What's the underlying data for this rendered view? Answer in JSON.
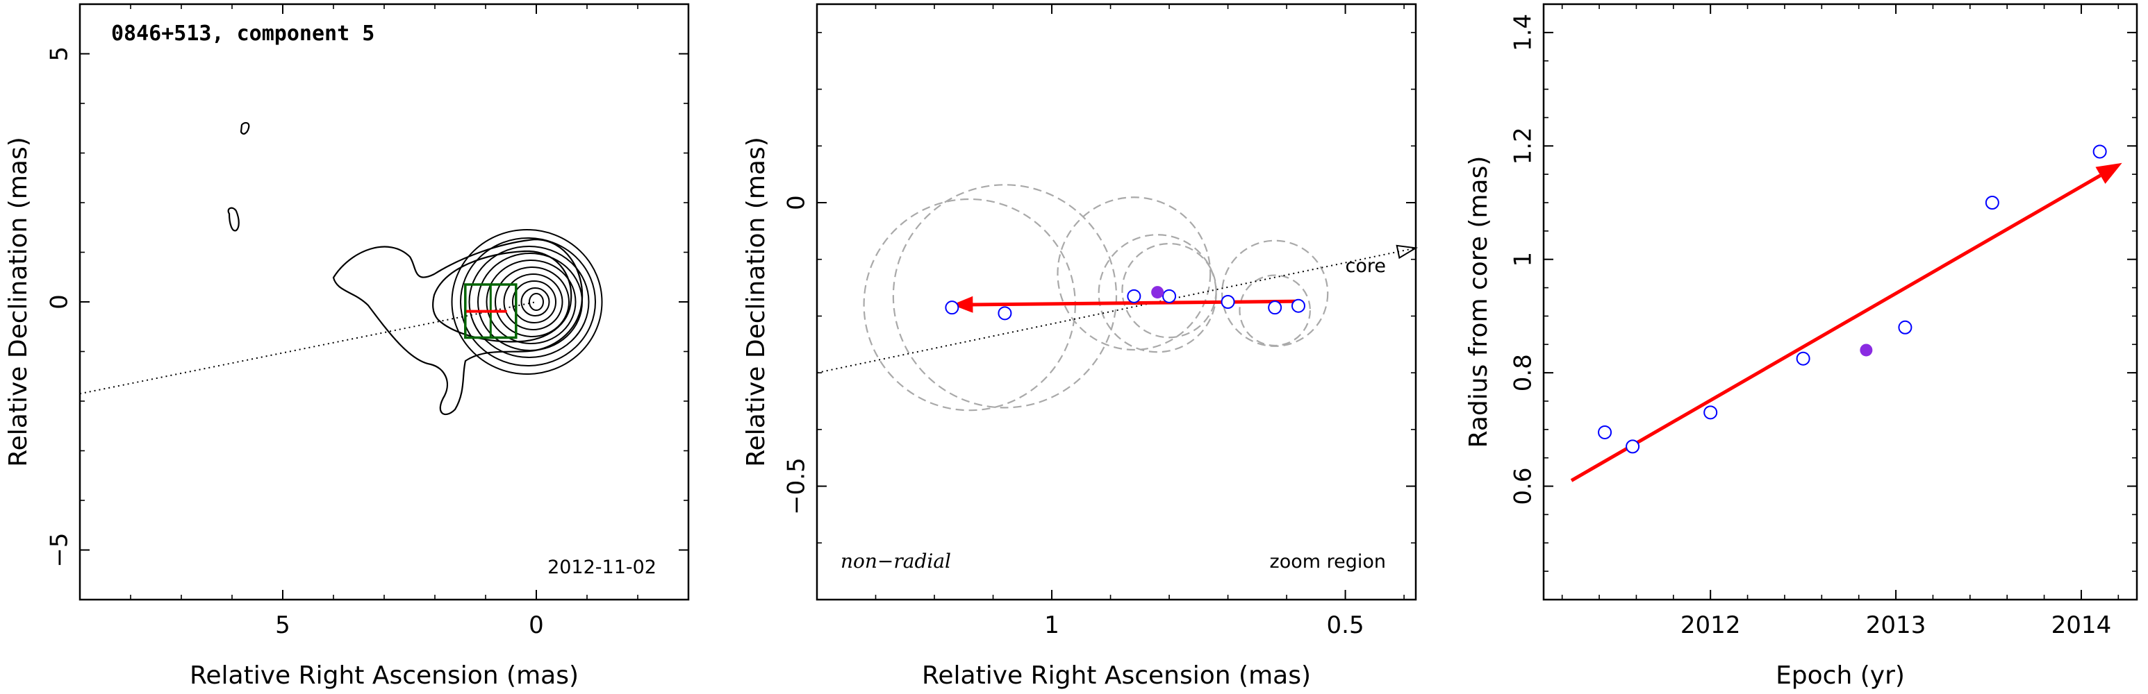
{
  "chart_data": [
    {
      "type": "scatter",
      "panel": "vlbi-map",
      "title": "0846+513, component 5",
      "date_label": "2012-11-02",
      "xlabel": "Relative Right Ascension (mas)",
      "ylabel": "Relative Declination (mas)",
      "xlim": [
        9,
        -3
      ],
      "ylim": [
        -6,
        6
      ],
      "x_ticks": [
        5,
        0
      ],
      "y_ticks": [
        5,
        0,
        -5
      ],
      "x_tick_labels": [
        "5",
        "0"
      ],
      "y_tick_labels": [
        "5",
        "0",
        "−5"
      ],
      "core_direction_line": {
        "x": [
          9.0,
          0.0
        ],
        "y": [
          -1.85,
          0.0
        ]
      },
      "contours_center": {
        "x": 0.0,
        "y": 0.0
      },
      "zoom_box": {
        "x": [
          1.4,
          0.4
        ],
        "y": [
          -0.72,
          0.35
        ]
      },
      "trajectory_arrow": {
        "x": [
          1.38,
          0.58
        ],
        "y": [
          -0.19,
          -0.19
        ]
      },
      "colors": {
        "contour": "#000000",
        "zoom_box": "#006400",
        "arrow": "#ff0000"
      }
    },
    {
      "type": "scatter",
      "panel": "zoom-region",
      "xlabel": "Relative Right Ascension (mas)",
      "ylabel": "Relative Declination (mas)",
      "xlim": [
        1.4,
        0.38
      ],
      "ylim": [
        -0.7,
        0.35
      ],
      "x_ticks": [
        1,
        0.5
      ],
      "y_ticks": [
        0,
        -0.5
      ],
      "x_tick_labels": [
        "1",
        "0.5"
      ],
      "y_tick_labels": [
        "0",
        "−0.5"
      ],
      "labels": {
        "mode": "non−radial",
        "region": "zoom region",
        "core": "core"
      },
      "positions": {
        "x": [
          1.17,
          1.08,
          0.86,
          0.8,
          0.7,
          0.62,
          0.58
        ],
        "y": [
          -0.185,
          -0.195,
          -0.165,
          -0.165,
          -0.175,
          -0.185,
          -0.182
        ]
      },
      "highlight": {
        "x": 0.82,
        "y": -0.158
      },
      "fit_circles": [
        {
          "x": 1.08,
          "y": -0.165,
          "r": 0.19
        },
        {
          "x": 1.14,
          "y": -0.18,
          "r": 0.18
        },
        {
          "x": 0.86,
          "y": -0.125,
          "r": 0.13
        },
        {
          "x": 0.82,
          "y": -0.16,
          "r": 0.1
        },
        {
          "x": 0.8,
          "y": -0.155,
          "r": 0.08
        },
        {
          "x": 0.62,
          "y": -0.16,
          "r": 0.09
        },
        {
          "x": 0.62,
          "y": -0.19,
          "r": 0.06
        }
      ],
      "core_direction_line": {
        "x": [
          1.4,
          0.38
        ],
        "y": [
          -0.3,
          -0.08
        ]
      },
      "trajectory_arrow": {
        "x": [
          0.58,
          1.17
        ],
        "y": [
          -0.174,
          -0.18
        ]
      },
      "colors": {
        "points": "#0000ff",
        "highlight": "#8a2be2",
        "circles": "#a9a9a9",
        "arrow": "#ff0000"
      }
    },
    {
      "type": "scatter",
      "panel": "radius-vs-epoch",
      "xlabel": "Epoch (yr)",
      "ylabel": "Radius from core (mas)",
      "xlim": [
        2011.1,
        2014.3
      ],
      "ylim": [
        0.4,
        1.45
      ],
      "x_ticks": [
        2012,
        2013,
        2014
      ],
      "y_ticks": [
        0.6,
        0.8,
        1.0,
        1.2,
        1.4
      ],
      "x_tick_labels": [
        "2012",
        "2013",
        "2014"
      ],
      "y_tick_labels": [
        "0.6",
        "0.8",
        "1",
        "1.2",
        "1.4"
      ],
      "series": [
        {
          "x": [
            2011.43,
            2011.58,
            2012.0,
            2012.5,
            2013.05,
            2013.52,
            2014.1
          ],
          "y": [
            0.695,
            0.67,
            0.73,
            0.825,
            0.88,
            1.1,
            1.19
          ]
        }
      ],
      "highlight": {
        "x": 2012.84,
        "y": 0.84
      },
      "trend_arrow": {
        "x": [
          2011.25,
          2014.22
        ],
        "y": [
          0.61,
          1.17
        ]
      },
      "colors": {
        "points": "#0000ff",
        "highlight": "#8a2be2",
        "arrow": "#ff0000"
      }
    }
  ]
}
